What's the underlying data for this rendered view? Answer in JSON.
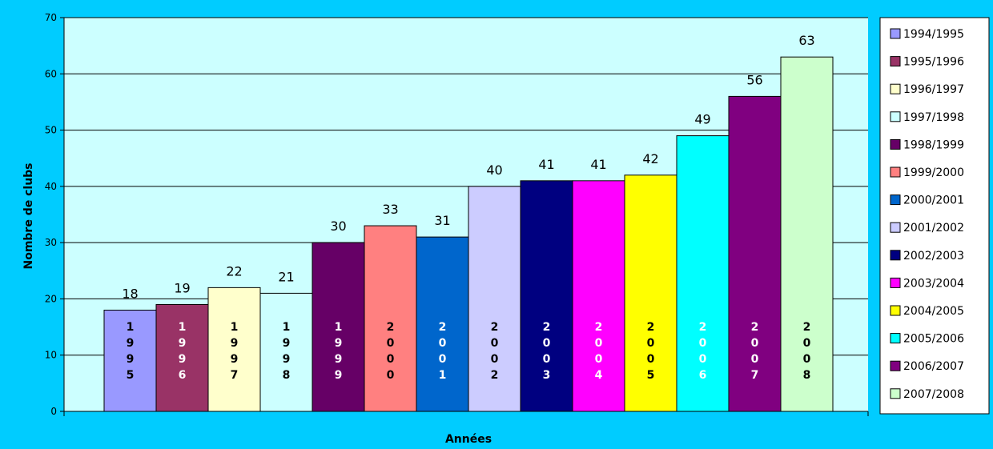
{
  "chart_data": {
    "type": "bar",
    "title": "",
    "xlabel": "Années",
    "ylabel": "Nombre de clubs",
    "ylim": [
      0,
      70
    ],
    "yticks": [
      0,
      10,
      20,
      30,
      40,
      50,
      60,
      70
    ],
    "grid": true,
    "legend_position": "right",
    "categories": [
      "1994/1995",
      "1995/1996",
      "1996/1997",
      "1997/1998",
      "1998/1999",
      "1999/2000",
      "2000/2001",
      "2001/2002",
      "2002/2003",
      "2003/2004",
      "2004/2005",
      "2005/2006",
      "2006/2007",
      "2007/2008"
    ],
    "bar_labels": [
      "1995",
      "1996",
      "1997",
      "1998",
      "1999",
      "2000",
      "2001",
      "2002",
      "2003",
      "2004",
      "2005",
      "2006",
      "2007",
      "2008"
    ],
    "values": [
      18,
      19,
      22,
      21,
      30,
      33,
      31,
      40,
      41,
      41,
      42,
      49,
      56,
      63
    ],
    "colors": [
      "#9999ff",
      "#993366",
      "#ffffcc",
      "#ccffff",
      "#660066",
      "#ff8080",
      "#0066cc",
      "#ccccff",
      "#000080",
      "#ff00ff",
      "#ffff00",
      "#00ffff",
      "#800080",
      "#ccffcc"
    ],
    "label_colors": [
      "#000000",
      "#ffffff",
      "#000000",
      "#000000",
      "#ffffff",
      "#000000",
      "#ffffff",
      "#000000",
      "#ffffff",
      "#ffffff",
      "#000000",
      "#ffffff",
      "#ffffff",
      "#000000"
    ]
  },
  "colors": {
    "background": "#00ccff",
    "plot_area": "#ccffff"
  }
}
